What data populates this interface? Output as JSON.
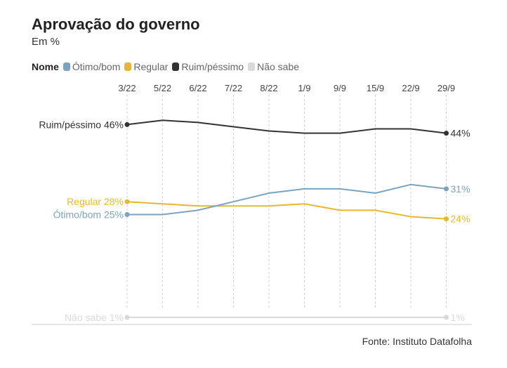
{
  "title": "Aprovação do governo",
  "subtitle": "Em %",
  "legend": {
    "title": "Nome",
    "items": [
      {
        "label": "Ótimo/bom",
        "color": "#7ba3c0"
      },
      {
        "label": "Regular",
        "color": "#e8b730"
      },
      {
        "label": "Ruim/péssimo",
        "color": "#333333"
      },
      {
        "label": "Não sabe",
        "color": "#d9d9d9"
      }
    ]
  },
  "source": "Fonte: Instituto Datafolha",
  "chart_data": {
    "type": "line",
    "x": [
      "3/22",
      "5/22",
      "6/22",
      "7/22",
      "8/22",
      "1/9",
      "9/9",
      "15/9",
      "22/9",
      "29/9"
    ],
    "ylim": [
      0,
      50
    ],
    "grid": "vertical dashed",
    "series": [
      {
        "name": "Ruim/péssimo",
        "color": "#333333",
        "values": [
          46,
          47,
          46.5,
          45.5,
          44.5,
          44,
          44,
          45,
          45,
          44
        ],
        "start_label": "Ruim/péssimo 46%",
        "end_label": "44%"
      },
      {
        "name": "Regular",
        "color": "#e8b730",
        "values": [
          28,
          27.5,
          27,
          27,
          27,
          27.5,
          26,
          26,
          24.5,
          24
        ],
        "start_label": "Regular 28%",
        "end_label": "24%"
      },
      {
        "name": "Ótimo/bom",
        "color": "#7ba3c0",
        "values": [
          25,
          25,
          26,
          28,
          30,
          31,
          31,
          30,
          32,
          31
        ],
        "start_label": "Ótimo/bom 25%",
        "end_label": "31%"
      },
      {
        "name": "Não sabe",
        "color": "#d9d9d9",
        "values": [
          1,
          1,
          1,
          1,
          1,
          1,
          1,
          1,
          1,
          1
        ],
        "start_label": "Não sabe 1%",
        "end_label": "1%"
      }
    ]
  }
}
